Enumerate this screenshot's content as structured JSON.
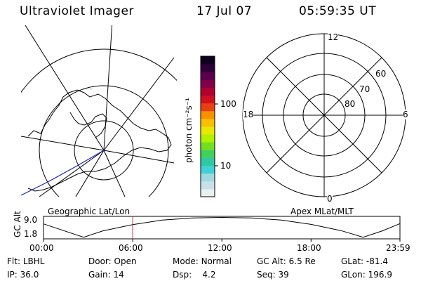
{
  "header": {
    "instrument": "Ultraviolet Imager",
    "date": "17 Jul 07",
    "time": "05:59:35 UT"
  },
  "colorbar": {
    "unit_label": "photon cm⁻²s⁻¹",
    "tick_labels": [
      "100",
      "10"
    ],
    "colors": [
      "#e8f0f0",
      "#c8e0e8",
      "#a0d8e0",
      "#40d0d8",
      "#30c8a0",
      "#40d060",
      "#70e020",
      "#b0f000",
      "#e8e800",
      "#f8c000",
      "#f89000",
      "#e84010",
      "#d01020",
      "#b00030",
      "#80004a",
      "#5a004a",
      "#300038",
      "#100020"
    ]
  },
  "left_map": {
    "label": "Geographic Lat/Lon"
  },
  "right_map": {
    "label": "Apex MLat/MLT",
    "mlt_labels": {
      "top": "12",
      "left": "18",
      "right": "6",
      "bottom": "0"
    },
    "lat_labels": [
      "60",
      "70",
      "80"
    ]
  },
  "altitude_plot": {
    "ylabel": "GC Alt",
    "y_ticks": [
      "9.0",
      "1.8"
    ],
    "x_ticks": [
      "00:00",
      "06:00",
      "12:00",
      "18:00",
      "23:59"
    ],
    "marker_color": "#c03040",
    "curve": [
      {
        "t": 0.0,
        "alt": 6.8
      },
      {
        "t": 1.5,
        "alt": 4.0
      },
      {
        "t": 2.7,
        "alt": 1.8
      },
      {
        "t": 4.0,
        "alt": 4.2
      },
      {
        "t": 6.0,
        "alt": 6.5
      },
      {
        "t": 8.0,
        "alt": 8.2
      },
      {
        "t": 10.0,
        "alt": 9.0
      },
      {
        "t": 12.0,
        "alt": 9.2
      },
      {
        "t": 14.0,
        "alt": 9.0
      },
      {
        "t": 16.0,
        "alt": 8.2
      },
      {
        "t": 18.0,
        "alt": 6.6
      },
      {
        "t": 20.0,
        "alt": 4.3
      },
      {
        "t": 21.5,
        "alt": 1.8
      },
      {
        "t": 22.8,
        "alt": 4.2
      },
      {
        "t": 23.98,
        "alt": 6.9
      }
    ],
    "current_time_hours": 6.0
  },
  "info": {
    "flt_label": "Flt:",
    "flt_value": "LBHL",
    "ip_label": "IP:",
    "ip_value": "36.0",
    "door_label": "Door:",
    "door_value": "Open",
    "gain_label": "Gain:",
    "gain_value": "14",
    "mode_label": "Mode:",
    "mode_value": "Normal",
    "dsp_label": "Dsp:",
    "dsp_value": "4.2",
    "gcalt_label": "GC Alt:",
    "gcalt_value": "6.5 Re",
    "seq_label": "Seq:",
    "seq_value": "39",
    "glat_label": "GLat:",
    "glat_value": "-81.4",
    "glon_label": "GLon:",
    "glon_value": "196.9"
  }
}
